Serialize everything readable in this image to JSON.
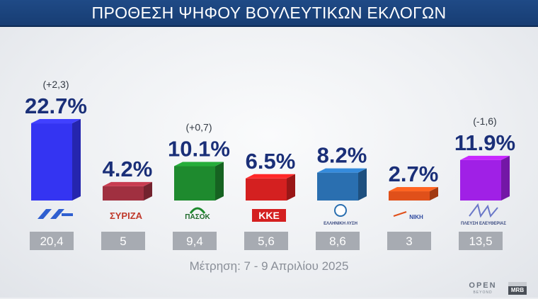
{
  "header": {
    "title": "ΠΡΟΘΕΣΗ ΨΗΦΟΥ ΒΟΥΛΕΥΤΙΚΩΝ ΕΚΛΟΓΩΝ"
  },
  "footer": {
    "note": "Μέτρηση: 7 - 9 Απριλίου 2025"
  },
  "branding": {
    "open": "OPEN",
    "beyond": "BEYOND",
    "mrb": "MRB"
  },
  "chart_data": {
    "type": "bar",
    "title": "ΠΡΟΘΕΣΗ ΨΗΦΟΥ ΒΟΥΛΕΥΤΙΚΩΝ ΕΚΛΟΓΩΝ",
    "ylim": [
      0,
      25
    ],
    "grid": false,
    "categories": [
      "ΝΔ",
      "ΣΥΡΙΖΑ",
      "ΠΑΣΟΚ",
      "ΚΚΕ",
      "ΕΛΛΗΝΙΚΗ ΛΥΣΗ",
      "ΝΙΚΗ",
      "ΠΛΕΥΣΗ ΕΛΕΥΘΕΡΙΑΣ"
    ],
    "values": [
      22.7,
      4.2,
      10.1,
      6.5,
      8.2,
      2.7,
      11.9
    ],
    "value_labels": [
      "22.7%",
      "4.2%",
      "10.1%",
      "6.5%",
      "8.2%",
      "2.7%",
      "11.9%"
    ],
    "changes": [
      "(+2,3)",
      "",
      "(+0,7)",
      "",
      "",
      "",
      "(-1,6)"
    ],
    "previous": [
      "20,4",
      "5",
      "9,4",
      "5,6",
      "8,6",
      "3",
      "13,5"
    ],
    "colors": [
      "#3434f2",
      "#a03040",
      "#1e8a2e",
      "#d42020",
      "#2a6fb0",
      "#e0501a",
      "#a020e6"
    ],
    "logos": [
      {
        "icon": "nd-logo",
        "text": ""
      },
      {
        "icon": "syriza-logo",
        "text": "ΣΥΡΙΖΑ"
      },
      {
        "icon": "pasok-logo",
        "text": "ΠΑΣΟΚ"
      },
      {
        "icon": "kke-logo",
        "text": "ΚΚΕ"
      },
      {
        "icon": "elliniki-lysi-logo",
        "text": "ΕΛΛΗΝΙΚΗ ΛΥΣΗ"
      },
      {
        "icon": "niki-logo",
        "text": "ΝΙΚΗ"
      },
      {
        "icon": "plefsi-logo",
        "text": "ΠΛΕΥΣΗ ΕΛΕΥΘΕΡΙΑΣ"
      }
    ]
  }
}
